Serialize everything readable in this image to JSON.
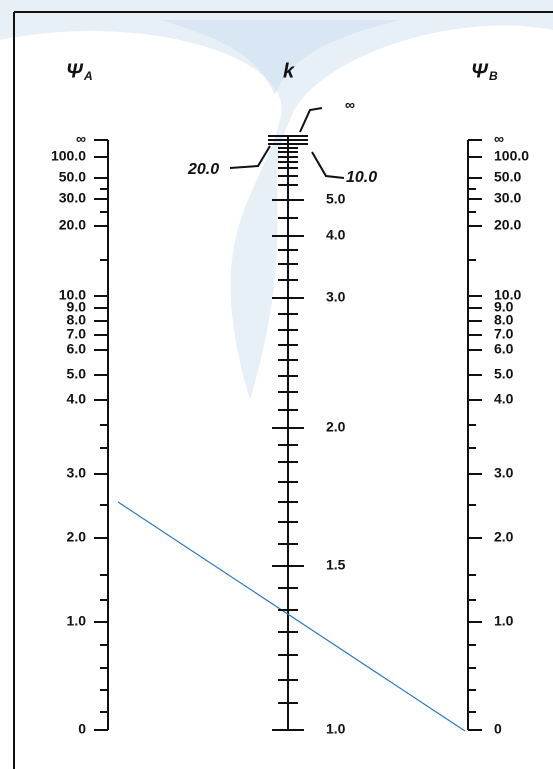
{
  "header": {
    "psi_a": "Ψ",
    "psi_a_sub": "A",
    "k": "k",
    "psi_b": "Ψ",
    "psi_b_sub": "B"
  },
  "scales": {
    "left": [
      "∞",
      "100.0",
      "50.0",
      "30.0",
      "20.0",
      "10.0",
      "9.0",
      "8.0",
      "7.0",
      "6.0",
      "5.0",
      "4.0",
      "3.0",
      "2.0",
      "1.0",
      "0"
    ],
    "center": {
      "infinity": "∞",
      "k20": "20.0",
      "k10": "10.0",
      "labels": [
        "5.0",
        "4.0",
        "3.0",
        "2.0",
        "1.5",
        "1.0"
      ]
    },
    "right": [
      "∞",
      "100.0",
      "50.0",
      "30.0",
      "20.0",
      "10.0",
      "9.0",
      "8.0",
      "7.0",
      "6.0",
      "5.0",
      "4.0",
      "3.0",
      "2.0",
      "1.0",
      "0"
    ]
  }
}
